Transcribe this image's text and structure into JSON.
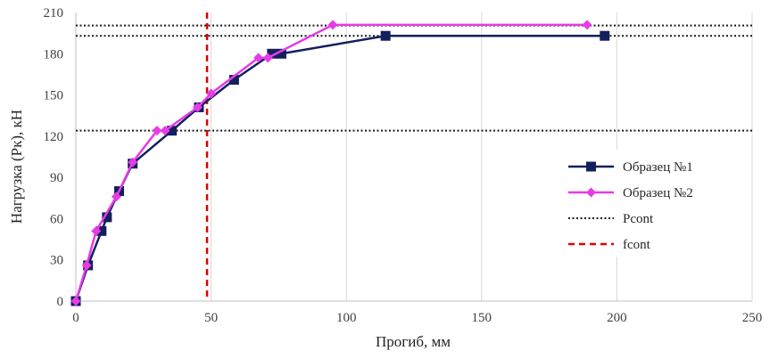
{
  "chart_data": {
    "type": "line",
    "xlabel": "Прогиб, мм",
    "ylabel": "Нагрузка (Рк), кН",
    "xlim": [
      0,
      250
    ],
    "ylim": [
      0,
      210
    ],
    "x_ticks": [
      0,
      50,
      100,
      150,
      200,
      250
    ],
    "y_ticks": [
      0,
      30,
      60,
      90,
      120,
      150,
      180,
      210
    ],
    "grid": "vertical",
    "legend_position": "right",
    "series": [
      {
        "name": "Образец №1",
        "color": "#13205c",
        "marker": "square",
        "x": [
          0,
          4.5,
          9.5,
          11.5,
          16,
          21,
          35.5,
          45.5,
          58.5,
          72.5,
          76,
          114.5,
          195.5
        ],
        "y": [
          0,
          26,
          51,
          61,
          80,
          100,
          124,
          141,
          161,
          180,
          180,
          193,
          193
        ]
      },
      {
        "name": "Образец №2",
        "color": "#e63ce6",
        "marker": "diamond",
        "x": [
          0,
          4,
          7.5,
          15,
          21,
          30,
          33,
          45,
          50,
          67.5,
          71,
          95,
          189
        ],
        "y": [
          0,
          26,
          51,
          76,
          101,
          124,
          124,
          141,
          151,
          177,
          177,
          201,
          201
        ]
      }
    ],
    "reference_lines": [
      {
        "name": "Pcont",
        "orientation": "horizontal",
        "values": [
          124,
          193,
          200.5
        ],
        "color": "#1a1a1a",
        "style": "dotted"
      },
      {
        "name": "fcont",
        "orientation": "vertical",
        "values": [
          48.5
        ],
        "color": "#e00000",
        "style": "dashed"
      }
    ]
  }
}
